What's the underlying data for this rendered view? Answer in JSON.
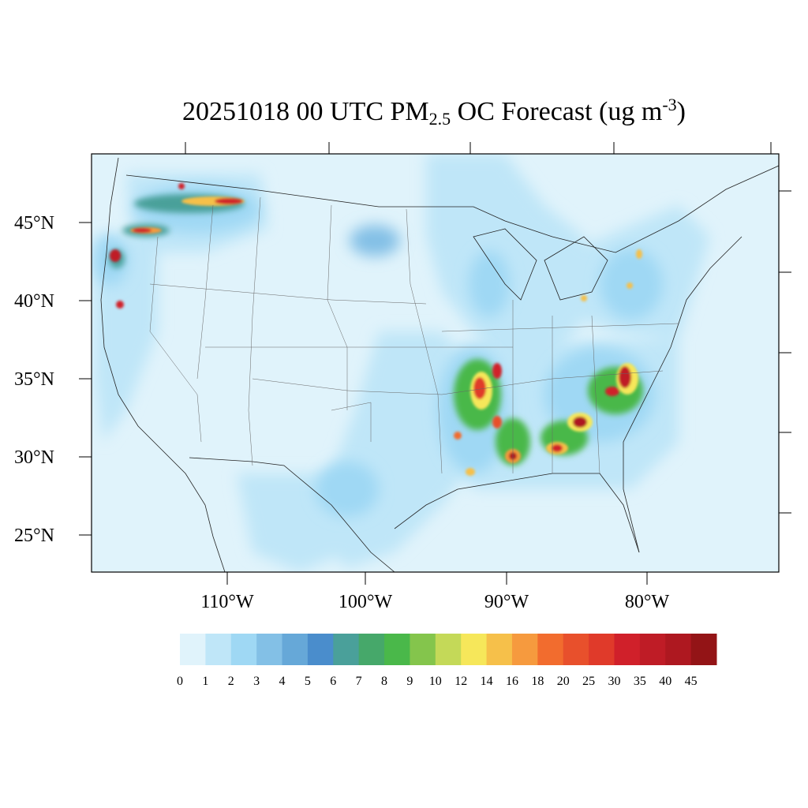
{
  "title": {
    "main_prefix": "20251018 00 UTC PM",
    "subscript": "2.5",
    "main_suffix": " OC Forecast (ug m",
    "superscript": "-3",
    "close": ")"
  },
  "axes": {
    "lat_labels": [
      "45°N",
      "40°N",
      "35°N",
      "30°N",
      "25°N"
    ],
    "lon_labels": [
      "110°W",
      "100°W",
      "90°W",
      "80°W"
    ]
  },
  "colorbar": {
    "colors": [
      "#e0f3fb",
      "#bfe6f8",
      "#9fd8f4",
      "#83c0e6",
      "#66a8d8",
      "#4a8dcc",
      "#4aa09a",
      "#46a86a",
      "#4ab84a",
      "#84c54c",
      "#c4d958",
      "#f6e75a",
      "#f6c04a",
      "#f69a3e",
      "#f26c2e",
      "#e8502c",
      "#e03a2a",
      "#d0202a",
      "#bf1c26",
      "#ae1820",
      "#931416"
    ],
    "labels": [
      "0",
      "1",
      "2",
      "3",
      "4",
      "5",
      "6",
      "7",
      "8",
      "9",
      "10",
      "12",
      "14",
      "16",
      "18",
      "20",
      "25",
      "30",
      "35",
      "40",
      "45"
    ]
  },
  "colors": {
    "background_sea": "#e0f3fb",
    "frame": "#000000",
    "borders": "#333333"
  }
}
